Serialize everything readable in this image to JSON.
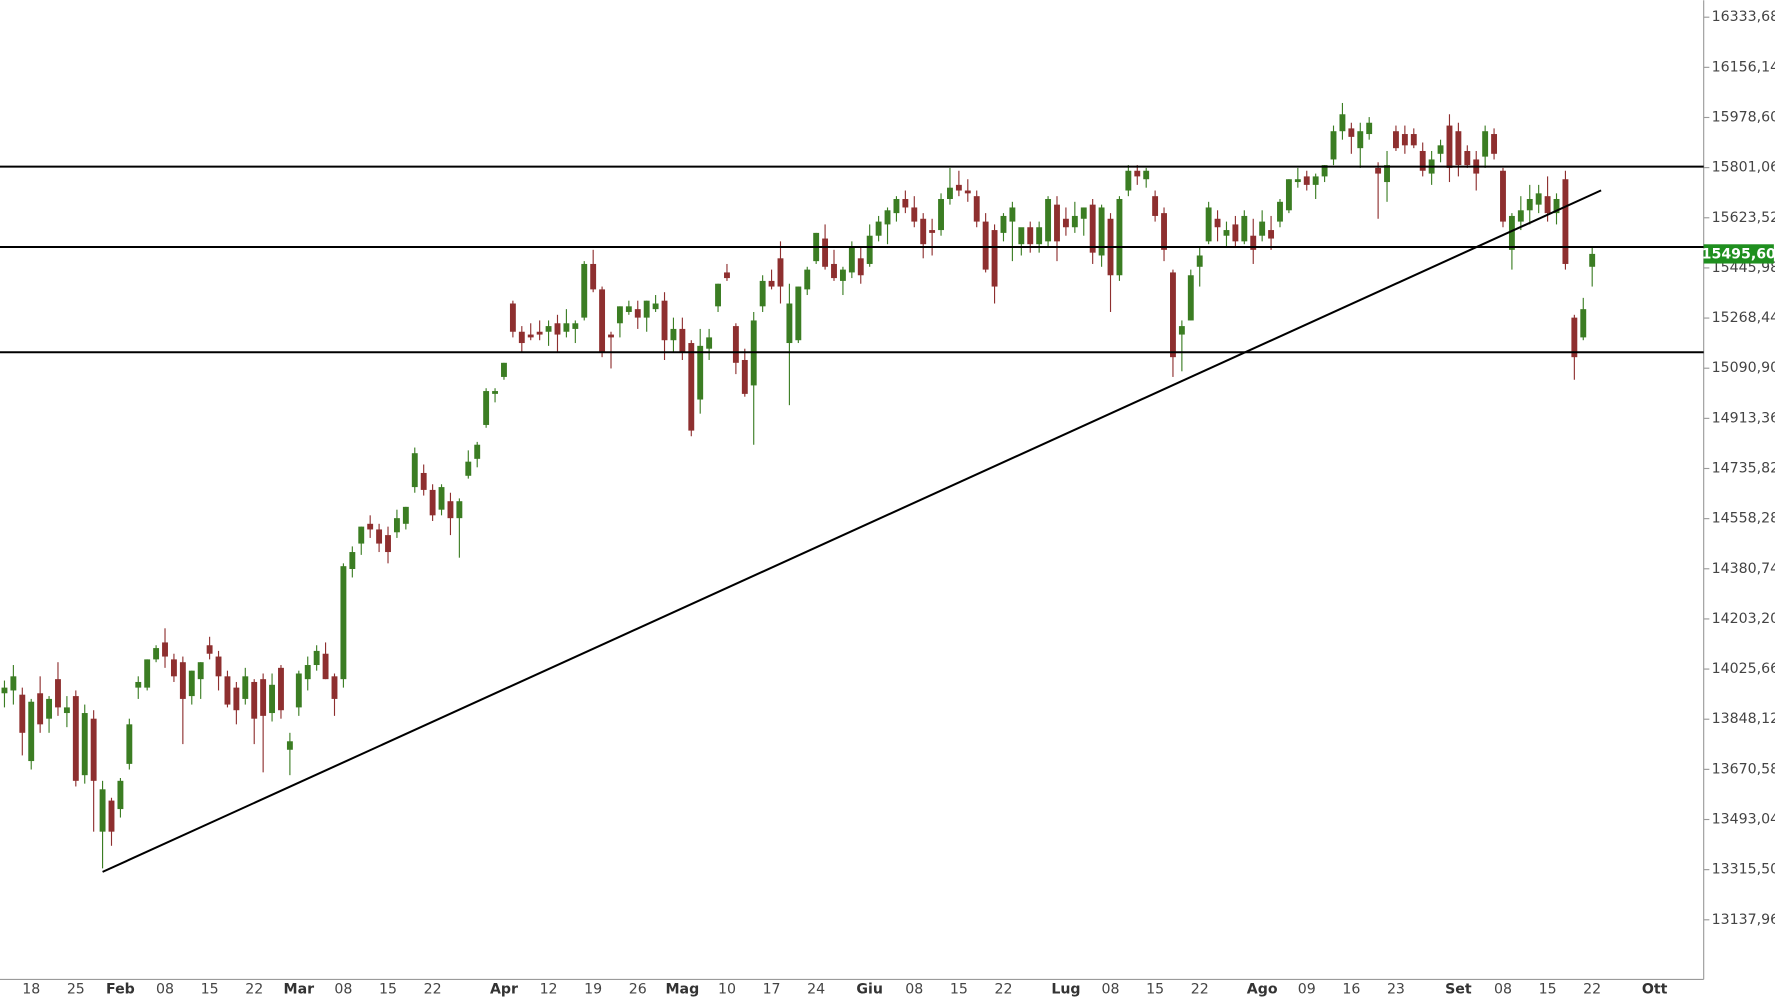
{
  "chart_data": {
    "type": "candlestick",
    "up_color": "#3b7d23",
    "down_color": "#8e2f2f",
    "categories": [
      null,
      null,
      null,
      "18",
      null,
      null,
      null,
      null,
      "25",
      null,
      null,
      null,
      null,
      "Feb",
      null,
      null,
      null,
      null,
      "08",
      null,
      null,
      null,
      null,
      "15",
      null,
      null,
      null,
      null,
      "22",
      null,
      null,
      null,
      null,
      "Mar",
      null,
      null,
      null,
      null,
      "08",
      null,
      null,
      null,
      null,
      "15",
      null,
      null,
      null,
      null,
      "22",
      null,
      null,
      null,
      null,
      null,
      null,
      null,
      "Apr",
      null,
      null,
      null,
      null,
      "12",
      null,
      null,
      null,
      null,
      "19",
      null,
      null,
      null,
      null,
      "26",
      null,
      null,
      null,
      null,
      "Mag",
      null,
      null,
      null,
      null,
      "10",
      null,
      null,
      null,
      null,
      "17",
      null,
      null,
      null,
      null,
      "24",
      null,
      null,
      null,
      null,
      null,
      "Giu",
      null,
      null,
      null,
      null,
      "08",
      null,
      null,
      null,
      null,
      "15",
      null,
      null,
      null,
      null,
      "22",
      null,
      null,
      null,
      null,
      null,
      null,
      "Lug",
      null,
      null,
      null,
      null,
      "08",
      null,
      null,
      null,
      null,
      "15",
      null,
      null,
      null,
      null,
      "22",
      null,
      null,
      null,
      null,
      null,
      null,
      "Ago",
      null,
      null,
      null,
      null,
      "09",
      null,
      null,
      null,
      null,
      "16",
      null,
      null,
      null,
      null,
      "23",
      null,
      null,
      null,
      null,
      null,
      null,
      "Set",
      null,
      null,
      null,
      null,
      "08",
      null,
      null,
      null,
      null,
      "15",
      null,
      null,
      null,
      null,
      "22",
      null,
      null,
      null,
      null,
      null,
      null,
      "Ott",
      null,
      null,
      null,
      null,
      null
    ],
    "open": [
      13940,
      13950,
      13935,
      13700,
      13940,
      13850,
      13990,
      13870,
      13930,
      13650,
      13850,
      13450,
      13560,
      13530,
      13690,
      13960,
      13960,
      14060,
      14120,
      14060,
      14050,
      13930,
      13990,
      14110,
      14070,
      14000,
      13960,
      13920,
      13980,
      13990,
      13870,
      14030,
      13740,
      13890,
      13990,
      14040,
      14080,
      14000,
      13990,
      14380,
      14470,
      14540,
      14520,
      14500,
      14510,
      14540,
      14670,
      14720,
      14660,
      14590,
      14620,
      14560,
      14710,
      14770,
      14890,
      15000,
      15060,
      15320,
      15220,
      15210,
      15220,
      15220,
      15250,
      15220,
      15230,
      15270,
      15460,
      15370,
      15210,
      15250,
      15290,
      15300,
      15270,
      15300,
      15330,
      15190,
      15230,
      15180,
      14980,
      15160,
      15310,
      15430,
      15240,
      15120,
      15030,
      15310,
      15400,
      15480,
      15180,
      15190,
      15370,
      15470,
      15550,
      15460,
      15400,
      15430,
      15480,
      15460,
      15560,
      15600,
      15640,
      15690,
      15660,
      15620,
      15580,
      15580,
      15690,
      15740,
      15720,
      15700,
      15610,
      15580,
      15570,
      15610,
      15530,
      15590,
      15530,
      15540,
      15670,
      15620,
      15590,
      15620,
      15670,
      15490,
      15620,
      15420,
      15720,
      15790,
      15760,
      15700,
      15640,
      15430,
      15210,
      15260,
      15450,
      15540,
      15620,
      15560,
      15600,
      15540,
      15560,
      15560,
      15580,
      15610,
      15650,
      15750,
      15770,
      15740,
      15770,
      15830,
      15930,
      15940,
      15870,
      15920,
      15800,
      15750,
      15930,
      15920,
      15920,
      15860,
      15780,
      15850,
      15950,
      15930,
      15860,
      15830,
      15840,
      15920,
      15790,
      15510,
      15610,
      15650,
      15670,
      15700,
      15640,
      15760,
      15270,
      15200,
      15450,
      null,
      null,
      null,
      null,
      null,
      null,
      null,
      null,
      null,
      null,
      null,
      null
    ],
    "high": [
      13985,
      14040,
      13960,
      13920,
      14000,
      13930,
      14050,
      13930,
      13950,
      13900,
      13880,
      13630,
      13570,
      13640,
      13850,
      14000,
      14060,
      14110,
      14170,
      14080,
      14070,
      14020,
      14050,
      14140,
      14090,
      14020,
      13980,
      14030,
      13990,
      14010,
      14010,
      14040,
      13800,
      14020,
      14070,
      14110,
      14120,
      14010,
      14400,
      14460,
      14530,
      14570,
      14540,
      14530,
      14590,
      14600,
      14810,
      14750,
      14680,
      14680,
      14650,
      14630,
      14800,
      14830,
      15020,
      15020,
      15110,
      15330,
      15240,
      15250,
      15260,
      15260,
      15280,
      15300,
      15260,
      15470,
      15510,
      15380,
      15220,
      15310,
      15330,
      15330,
      15330,
      15350,
      15360,
      15270,
      15270,
      15190,
      15230,
      15230,
      15390,
      15460,
      15250,
      15160,
      15290,
      15420,
      15440,
      15540,
      15390,
      15380,
      15450,
      15570,
      15600,
      15510,
      15450,
      15540,
      15520,
      15600,
      15630,
      15660,
      15700,
      15720,
      15700,
      15640,
      15620,
      15710,
      15800,
      15790,
      15760,
      15720,
      15640,
      15600,
      15640,
      15680,
      15580,
      15610,
      15610,
      15700,
      15700,
      15660,
      15680,
      15660,
      15690,
      15670,
      15640,
      15700,
      15810,
      15810,
      15800,
      15720,
      15660,
      15440,
      15260,
      15440,
      15520,
      15680,
      15650,
      15610,
      15630,
      15650,
      15620,
      15650,
      15630,
      15690,
      15760,
      15800,
      15790,
      15780,
      15810,
      15950,
      16030,
      15960,
      15960,
      15980,
      15820,
      15860,
      15950,
      15950,
      15940,
      15890,
      15860,
      15900,
      15990,
      15960,
      15880,
      15860,
      15950,
      15940,
      15800,
      15640,
      15700,
      15740,
      15740,
      15770,
      15710,
      15790,
      15280,
      15340,
      15520,
      null,
      null,
      null,
      null,
      null,
      null,
      null,
      null,
      null,
      null,
      null,
      null
    ],
    "low": [
      13890,
      13900,
      13720,
      13670,
      13800,
      13800,
      13860,
      13820,
      13610,
      13620,
      13450,
      13320,
      13400,
      13500,
      13670,
      13920,
      13950,
      14050,
      14030,
      13980,
      13760,
      13900,
      13920,
      14060,
      13950,
      13890,
      13830,
      13900,
      13760,
      13660,
      13840,
      13850,
      13650,
      13860,
      13950,
      14020,
      13990,
      13860,
      13960,
      14350,
      14430,
      14490,
      14440,
      14400,
      14490,
      14520,
      14650,
      14640,
      14550,
      14570,
      14500,
      14420,
      14700,
      14740,
      14880,
      14970,
      15050,
      15200,
      15150,
      15190,
      15190,
      15170,
      15150,
      15200,
      15180,
      15260,
      15360,
      15130,
      15090,
      15200,
      15280,
      15230,
      15220,
      15290,
      15120,
      15150,
      15120,
      14850,
      14930,
      15120,
      15290,
      15400,
      15070,
      14990,
      14820,
      15290,
      15370,
      15320,
      14960,
      15180,
      15350,
      15460,
      15440,
      15400,
      15350,
      15410,
      15390,
      15450,
      15540,
      15530,
      15610,
      15640,
      15590,
      15480,
      15490,
      15560,
      15670,
      15700,
      15680,
      15590,
      15430,
      15320,
      15540,
      15470,
      15490,
      15500,
      15500,
      15520,
      15470,
      15560,
      15570,
      15560,
      15460,
      15450,
      15290,
      15400,
      15700,
      15740,
      15730,
      15610,
      15470,
      15060,
      15080,
      15260,
      15380,
      15530,
      15540,
      15520,
      15520,
      15530,
      15460,
      15540,
      15510,
      15590,
      15640,
      15730,
      15720,
      15690,
      15750,
      15810,
      15900,
      15850,
      15800,
      15900,
      15620,
      15680,
      15860,
      15850,
      15870,
      15770,
      15740,
      15820,
      15750,
      15770,
      15800,
      15720,
      15800,
      15830,
      15590,
      15440,
      15580,
      15600,
      15640,
      15610,
      15600,
      15440,
      15050,
      15190,
      15380,
      null,
      null,
      null,
      null,
      null,
      null,
      null,
      null,
      null,
      null,
      null,
      null
    ],
    "close": [
      13960,
      14000,
      13800,
      13910,
      13830,
      13920,
      13890,
      13890,
      13630,
      13870,
      13630,
      13600,
      13450,
      13630,
      13830,
      13980,
      14060,
      14100,
      14070,
      14000,
      13920,
      14020,
      14050,
      14080,
      14000,
      13900,
      13880,
      14000,
      13850,
      13860,
      13970,
      13880,
      13770,
      14010,
      14040,
      14090,
      13990,
      13920,
      14390,
      14440,
      14530,
      14520,
      14470,
      14440,
      14560,
      14600,
      14790,
      14660,
      14570,
      14670,
      14560,
      14620,
      14760,
      14820,
      15010,
      15010,
      15110,
      15220,
      15180,
      15200,
      15210,
      15240,
      15210,
      15250,
      15250,
      15460,
      15370,
      15150,
      15200,
      15310,
      15310,
      15270,
      15330,
      15320,
      15190,
      15230,
      15150,
      14870,
      15170,
      15200,
      15390,
      15410,
      15110,
      15000,
      15260,
      15400,
      15380,
      15380,
      15320,
      15380,
      15440,
      15570,
      15450,
      15410,
      15440,
      15520,
      15420,
      15560,
      15610,
      15650,
      15690,
      15660,
      15610,
      15530,
      15570,
      15690,
      15730,
      15720,
      15710,
      15610,
      15440,
      15380,
      15630,
      15660,
      15590,
      15530,
      15590,
      15690,
      15540,
      15590,
      15630,
      15660,
      15500,
      15660,
      15420,
      15690,
      15790,
      15770,
      15790,
      15630,
      15510,
      15130,
      15240,
      15420,
      15490,
      15660,
      15590,
      15580,
      15540,
      15630,
      15510,
      15610,
      15550,
      15680,
      15760,
      15760,
      15740,
      15770,
      15810,
      15930,
      15990,
      15910,
      15930,
      15960,
      15780,
      15810,
      15870,
      15880,
      15880,
      15790,
      15830,
      15880,
      15800,
      15810,
      15810,
      15780,
      15930,
      15850,
      15610,
      15630,
      15650,
      15690,
      15710,
      15640,
      15690,
      15460,
      15130,
      15300,
      15495.6,
      null,
      null,
      null,
      null,
      null,
      null,
      null,
      null,
      null,
      null,
      null,
      null
    ],
    "ylim": [
      12926.9,
      16393.8
    ],
    "yticks": [
      {
        "value": 16333.68,
        "label": "16333,68"
      },
      {
        "value": 16156.14,
        "label": "16156,14"
      },
      {
        "value": 15978.6,
        "label": "15978,60"
      },
      {
        "value": 15801.06,
        "label": "15801,06"
      },
      {
        "value": 15623.52,
        "label": "15623,52"
      },
      {
        "value": 15445.98,
        "label": "15445,98"
      },
      {
        "value": 15268.44,
        "label": "15268,44"
      },
      {
        "value": 15090.9,
        "label": "15090,90"
      },
      {
        "value": 14913.36,
        "label": "14913,36"
      },
      {
        "value": 14735.82,
        "label": "14735,82"
      },
      {
        "value": 14558.28,
        "label": "14558,28"
      },
      {
        "value": 14380.74,
        "label": "14380,74"
      },
      {
        "value": 14203.2,
        "label": "14203,20"
      },
      {
        "value": 14025.66,
        "label": "14025,66"
      },
      {
        "value": 13848.12,
        "label": "13848,12"
      },
      {
        "value": 13670.58,
        "label": "13670,58"
      },
      {
        "value": 13493.04,
        "label": "13493,04"
      },
      {
        "value": 13315.5,
        "label": "13315,50"
      },
      {
        "value": 13137.96,
        "label": "13137,96"
      }
    ],
    "last_price": {
      "value": 15495.6,
      "label": "15495,60",
      "color": "#1f8f1f"
    },
    "levels": [
      15804.6,
      15520.1,
      15147.3
    ],
    "trendline": {
      "x": [
        11,
        179
      ],
      "y": [
        13307.6,
        15720.5
      ]
    },
    "line_color": "#000000"
  }
}
